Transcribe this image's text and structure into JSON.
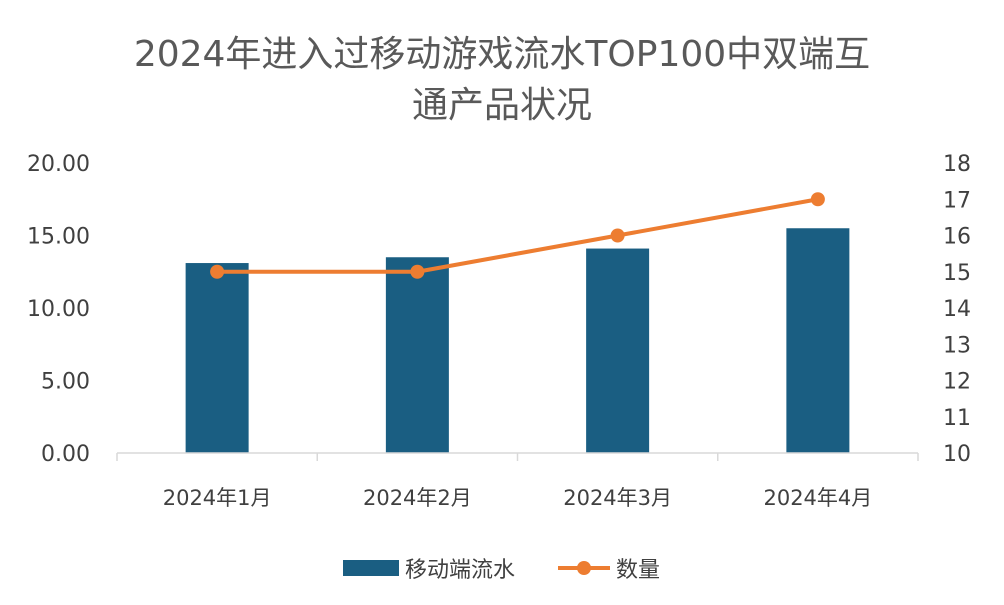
{
  "chart_data": {
    "type": "bar",
    "title_lines": [
      "2024年进入过移动游戏流水TOP100中双端互",
      "通产品状况"
    ],
    "categories": [
      "2024年1月",
      "2024年2月",
      "2024年3月",
      "2024年4月"
    ],
    "series": [
      {
        "name": "移动端流水",
        "type": "bar",
        "axis": "left",
        "color": "#1a5e82",
        "values": [
          13.1,
          13.5,
          14.1,
          15.5
        ]
      },
      {
        "name": "数量",
        "type": "line",
        "axis": "right",
        "color": "#ed7d31",
        "marker": "circle",
        "values": [
          15,
          15,
          16,
          17
        ]
      }
    ],
    "y_left": {
      "min": 0,
      "max": 20,
      "step": 5,
      "ticks": [
        "0.00",
        "5.00",
        "10.00",
        "15.00",
        "20.00"
      ]
    },
    "y_right": {
      "min": 10,
      "max": 18,
      "step": 1,
      "ticks": [
        "10",
        "11",
        "12",
        "13",
        "14",
        "15",
        "16",
        "17",
        "18"
      ]
    },
    "grid": false,
    "legend_position": "bottom"
  }
}
